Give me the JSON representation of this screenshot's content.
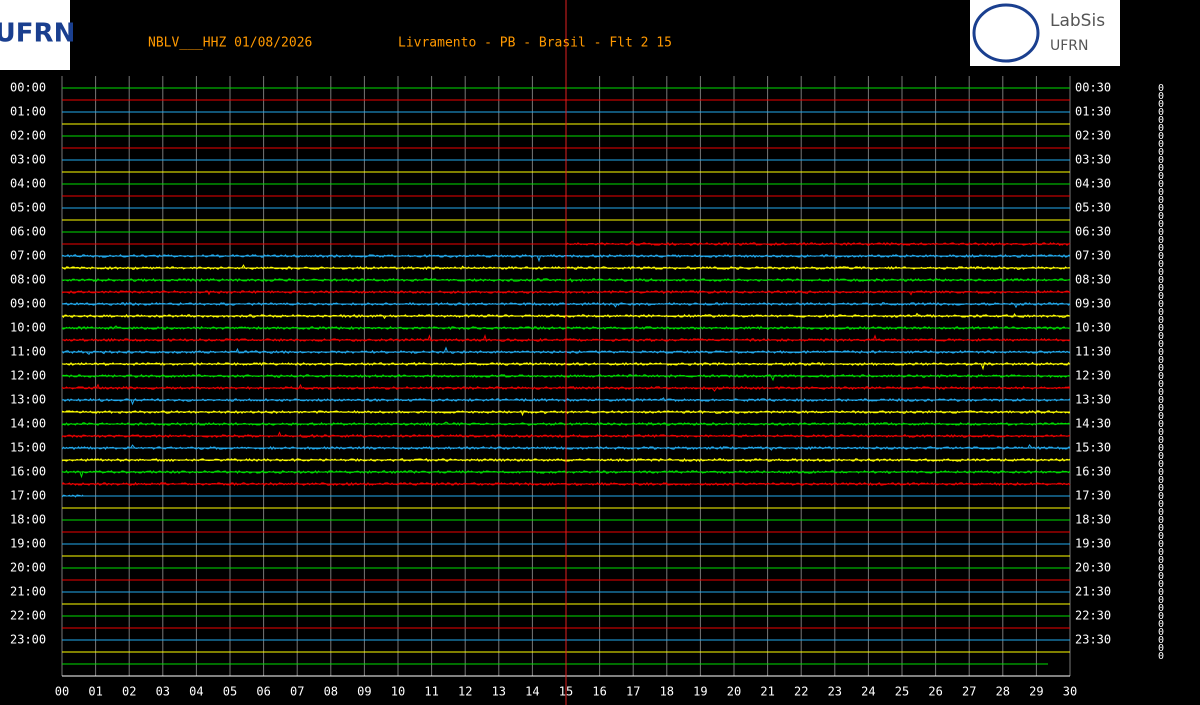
{
  "header": {
    "station": "NBLV___HHZ 01/08/2026",
    "location": "Livramento - PB - Brasil - Flt 2 15"
  },
  "logos": {
    "left": "UFRN",
    "right_title": "LabSis",
    "right_subtitle": "UFRN"
  },
  "left_labels": [
    "00:00",
    "01:00",
    "02:00",
    "03:00",
    "04:00",
    "05:00",
    "06:00",
    "07:00",
    "08:00",
    "09:00",
    "10:00",
    "11:00",
    "12:00",
    "13:00",
    "14:00",
    "15:00",
    "16:00",
    "17:00",
    "18:00",
    "19:00",
    "20:00",
    "21:00",
    "22:00",
    "23:00"
  ],
  "right_labels": [
    "00:30",
    "01:30",
    "02:30",
    "03:30",
    "04:30",
    "05:30",
    "06:30",
    "07:30",
    "08:30",
    "09:30",
    "10:30",
    "11:30",
    "12:30",
    "13:30",
    "14:30",
    "15:30",
    "16:30",
    "17:30",
    "18:30",
    "19:30",
    "20:30",
    "21:30",
    "22:30",
    "23:30"
  ],
  "x_ticks": [
    "00",
    "01",
    "02",
    "03",
    "04",
    "05",
    "06",
    "07",
    "08",
    "09",
    "10",
    "11",
    "12",
    "13",
    "14",
    "15",
    "16",
    "17",
    "18",
    "19",
    "20",
    "21",
    "22",
    "23",
    "24",
    "25",
    "26",
    "27",
    "28",
    "29",
    "30"
  ],
  "scale_marks": [
    "0",
    "0",
    "0",
    "0",
    "0",
    "0",
    "0",
    "0",
    "0",
    "0",
    "0",
    "0",
    "0",
    "0",
    "0",
    "0",
    "0",
    "0",
    "0",
    "0",
    "0",
    "0",
    "0",
    "0",
    "0",
    "0",
    "0",
    "0",
    "0",
    "0",
    "0",
    "0",
    "0",
    "0",
    "0",
    "0",
    "0",
    "0",
    "0",
    "0",
    "0",
    "0",
    "0",
    "0",
    "0",
    "0",
    "0",
    "0",
    "0",
    "0",
    "0",
    "0",
    "0",
    "0",
    "0",
    "0",
    "0",
    "0",
    "0",
    "0",
    "0",
    "0",
    "0",
    "0",
    "0",
    "0",
    "0",
    "0",
    "0",
    "0",
    "0",
    "0"
  ]
}
